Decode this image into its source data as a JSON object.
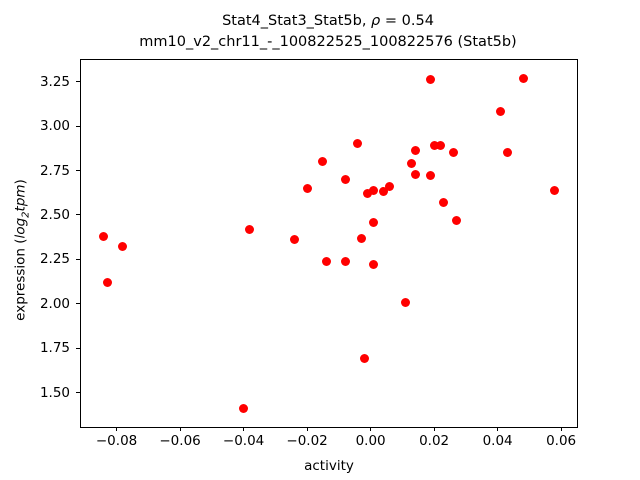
{
  "window": {
    "background": "#ffffff"
  },
  "title": {
    "line1_prefix": "Stat4_Stat3_Stat5b, ",
    "line1_rho": "ρ",
    "line1_suffix": " = 0.54",
    "line2": "mm10_v2_chr11_-_100822525_100822576 (Stat5b)"
  },
  "axis_labels": {
    "x": "activity",
    "y_prefix": "expression (",
    "y_math_log": "log",
    "y_math_sub": "2",
    "y_math_tpm": "tpm",
    "y_suffix": ")"
  },
  "chart_data": {
    "type": "scatter",
    "title": "Stat4_Stat3_Stat5b, ρ = 0.54",
    "subtitle": "mm10_v2_chr11_-_100822525_100822576 (Stat5b)",
    "xlabel": "activity",
    "ylabel": "expression (log2 tpm)",
    "marker_color": "#ff0000",
    "marker_diameter_px": 9,
    "grid": false,
    "legend": "none",
    "xlim": [
      -0.0912,
      0.065
    ],
    "ylim": [
      1.307,
      3.372
    ],
    "x_ticks": [
      -0.08,
      -0.06,
      -0.04,
      -0.02,
      0.0,
      0.02,
      0.04,
      0.06
    ],
    "y_ticks": [
      1.5,
      1.75,
      2.0,
      2.25,
      2.5,
      2.75,
      3.0,
      3.25
    ],
    "correlation_rho": 0.54,
    "points": [
      [
        -0.084,
        2.38
      ],
      [
        -0.083,
        2.12
      ],
      [
        -0.078,
        2.32
      ],
      [
        -0.04,
        1.41
      ],
      [
        -0.038,
        2.42
      ],
      [
        -0.024,
        2.36
      ],
      [
        -0.02,
        2.65
      ],
      [
        -0.015,
        2.8
      ],
      [
        -0.014,
        2.24
      ],
      [
        -0.008,
        2.7
      ],
      [
        -0.008,
        2.24
      ],
      [
        -0.004,
        2.9
      ],
      [
        -0.003,
        2.37
      ],
      [
        -0.002,
        1.69
      ],
      [
        -0.001,
        2.62
      ],
      [
        0.001,
        2.64
      ],
      [
        0.001,
        2.46
      ],
      [
        0.001,
        2.22
      ],
      [
        0.004,
        2.63
      ],
      [
        0.006,
        2.66
      ],
      [
        0.011,
        2.01
      ],
      [
        0.013,
        2.79
      ],
      [
        0.014,
        2.86
      ],
      [
        0.014,
        2.73
      ],
      [
        0.019,
        3.26
      ],
      [
        0.019,
        2.72
      ],
      [
        0.02,
        2.89
      ],
      [
        0.022,
        2.89
      ],
      [
        0.023,
        2.57
      ],
      [
        0.026,
        2.85
      ],
      [
        0.027,
        2.47
      ],
      [
        0.041,
        3.08
      ],
      [
        0.043,
        2.85
      ],
      [
        0.048,
        3.27
      ],
      [
        0.058,
        2.64
      ]
    ]
  }
}
